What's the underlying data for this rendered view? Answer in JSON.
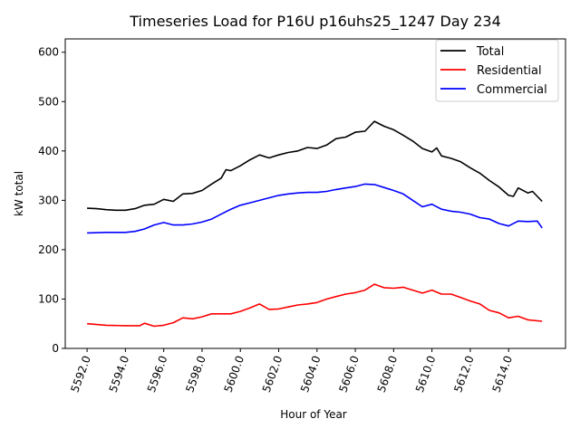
{
  "chart_data": {
    "type": "line",
    "title": "Timeseries Load for P16U p16uhs25_1247  Day 234",
    "xlabel": "Hour of Year",
    "ylabel": "kW total",
    "xlim": [
      5590.86,
      5616.97
    ],
    "ylim": [
      0,
      627
    ],
    "xticks": [
      5592,
      5594,
      5596,
      5598,
      5600,
      5602,
      5604,
      5606,
      5608,
      5610,
      5612,
      5614
    ],
    "xtick_labels": [
      "5592.0",
      "5594.0",
      "5596.0",
      "5598.0",
      "5600.0",
      "5602.0",
      "5604.0",
      "5606.0",
      "5608.0",
      "5610.0",
      "5612.0",
      "5614.0"
    ],
    "yticks": [
      0,
      100,
      200,
      300,
      400,
      500,
      600
    ],
    "ytick_labels": [
      "0",
      "100",
      "200",
      "300",
      "400",
      "500",
      "600"
    ],
    "grid": false,
    "legend_position": "top-right",
    "series": [
      {
        "name": "Total",
        "color": "#000000",
        "x": [
          5592,
          5592.5,
          5593,
          5593.5,
          5594,
          5594.5,
          5595,
          5595.5,
          5596,
          5596.5,
          5597,
          5597.5,
          5598,
          5598.5,
          5599,
          5599.25,
          5599.5,
          5600,
          5600.5,
          5601,
          5601.5,
          5602,
          5602.5,
          5603,
          5603.5,
          5604,
          5604.5,
          5605,
          5605.5,
          5606,
          5606.5,
          5607,
          5607.5,
          5608,
          5608.5,
          5609,
          5609.5,
          5610,
          5610.25,
          5610.5,
          5611,
          5611.5,
          5612,
          5612.5,
          5613,
          5613.5,
          5614,
          5614.25,
          5614.5,
          5615,
          5615.25,
          5615.75
        ],
        "y": [
          284,
          283,
          281,
          280,
          280,
          283,
          290,
          292,
          302,
          298,
          313,
          314,
          320,
          333,
          345,
          362,
          360,
          370,
          382,
          392,
          386,
          392,
          397,
          400,
          407,
          405,
          412,
          425,
          428,
          438,
          440,
          460,
          450,
          443,
          432,
          420,
          405,
          398,
          406,
          390,
          385,
          378,
          366,
          355,
          340,
          327,
          310,
          308,
          325,
          315,
          318,
          298
        ]
      },
      {
        "name": "Residential",
        "color": "#ff0000",
        "x": [
          5592,
          5593,
          5594,
          5594.75,
          5595,
          5595.5,
          5596,
          5596.5,
          5597,
          5597.5,
          5598,
          5598.5,
          5599,
          5599.5,
          5600,
          5600.5,
          5601,
          5601.5,
          5602,
          5602.5,
          5603,
          5603.5,
          5604,
          5604.5,
          5605,
          5605.5,
          5606,
          5606.5,
          5607,
          5607.5,
          5608,
          5608.5,
          5609,
          5609.5,
          5610,
          5610.5,
          5611,
          5611.5,
          5612,
          5612.5,
          5613,
          5613.5,
          5614,
          5614.5,
          5615,
          5615.75
        ],
        "y": [
          50,
          47,
          46,
          46,
          51,
          45,
          47,
          52,
          62,
          60,
          64,
          70,
          70,
          70,
          75,
          82,
          90,
          79,
          80,
          84,
          88,
          90,
          93,
          100,
          105,
          110,
          113,
          118,
          130,
          123,
          122,
          124,
          118,
          112,
          118,
          110,
          110,
          103,
          96,
          90,
          77,
          72,
          62,
          65,
          58,
          55
        ]
      },
      {
        "name": "Commercial",
        "color": "#0000ff",
        "x": [
          5592,
          5593,
          5594,
          5594.5,
          5595,
          5595.5,
          5596,
          5596.5,
          5597,
          5597.5,
          5598,
          5598.5,
          5599,
          5599.5,
          5600,
          5600.5,
          5601,
          5601.5,
          5602,
          5602.5,
          5603,
          5603.5,
          5604,
          5604.5,
          5605,
          5605.5,
          5606,
          5606.5,
          5607,
          5607.5,
          5608,
          5608.5,
          5609,
          5609.5,
          5610,
          5610.5,
          5611,
          5611.5,
          5612,
          5612.5,
          5613,
          5613.5,
          5614,
          5614.5,
          5615,
          5615.5,
          5615.75
        ],
        "y": [
          234,
          235,
          235,
          237,
          242,
          250,
          255,
          250,
          250,
          252,
          256,
          262,
          272,
          282,
          290,
          295,
          300,
          305,
          310,
          313,
          315,
          316,
          316,
          318,
          322,
          325,
          328,
          333,
          332,
          326,
          320,
          313,
          300,
          287,
          292,
          282,
          278,
          276,
          272,
          265,
          262,
          253,
          248,
          258,
          257,
          258,
          244
        ]
      }
    ]
  }
}
